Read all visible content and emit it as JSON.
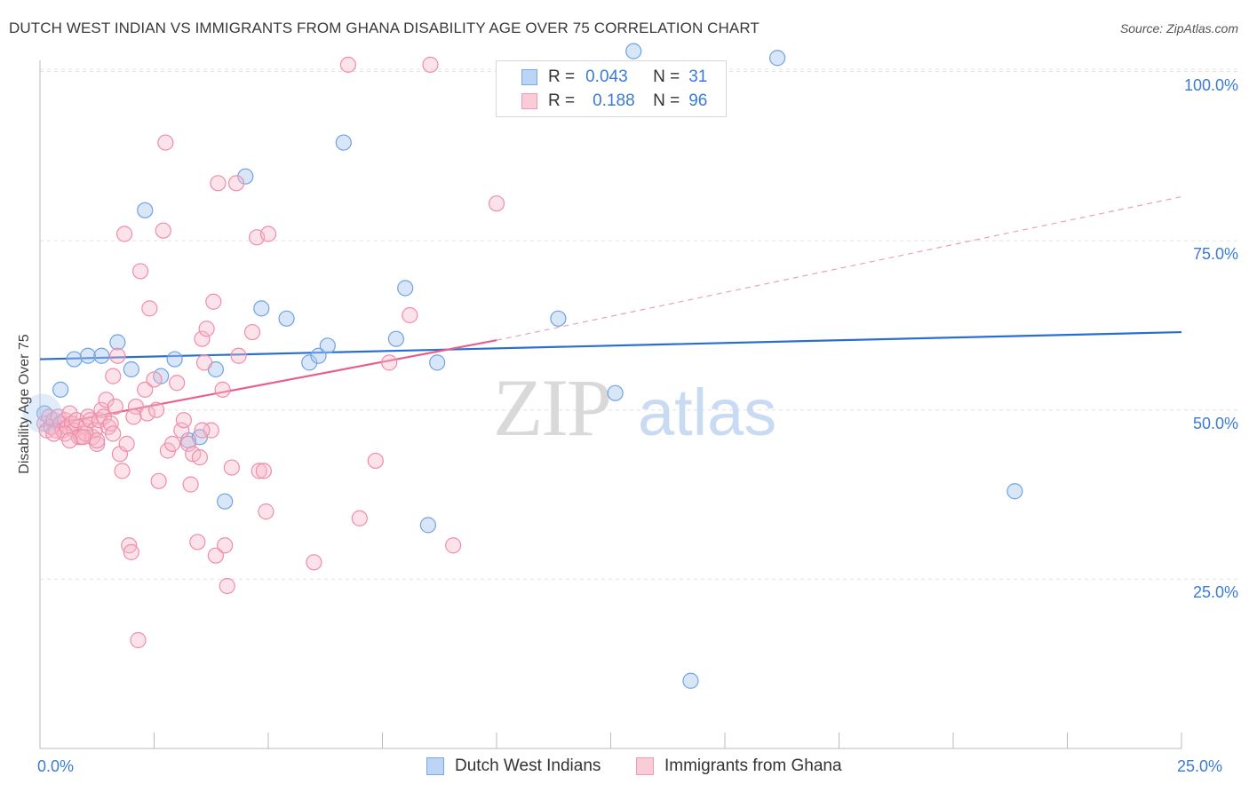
{
  "title": "DUTCH WEST INDIAN VS IMMIGRANTS FROM GHANA DISABILITY AGE OVER 75 CORRELATION CHART",
  "source": "Source: ZipAtlas.com",
  "watermark": {
    "zip": "ZIP",
    "atlas": "atlas"
  },
  "legend": {
    "r_label": "R =",
    "n_label": "N =",
    "blue": {
      "r": "0.043",
      "n": "31",
      "color": "#a8c8f0"
    },
    "pink": {
      "r": "0.188",
      "n": "96",
      "color": "#f6b8c8"
    }
  },
  "bottom_legend": {
    "blue": "Dutch West Indians",
    "pink": "Immigrants from Ghana"
  },
  "chart_data": {
    "type": "scatter",
    "xlabel": "",
    "ylabel": "Disability Age Over 75",
    "xlim": [
      0,
      25
    ],
    "ylim": [
      0,
      105
    ],
    "x_tick_labels": [
      "0.0%",
      "25.0%"
    ],
    "y_ticks": [
      25,
      50,
      75,
      100
    ],
    "y_tick_labels": [
      "25.0%",
      "50.0%",
      "75.0%",
      "100.0%"
    ],
    "grid": true,
    "series": [
      {
        "name": "Dutch West Indians",
        "color": "#6fa3e0",
        "trend": {
          "x": [
            0,
            25
          ],
          "y": [
            57.5,
            61.5
          ],
          "style": "solid",
          "color": "#2a6fd0"
        },
        "points": [
          [
            0.1,
            49.5
          ],
          [
            0.45,
            53
          ],
          [
            0.75,
            57.5
          ],
          [
            1.05,
            58
          ],
          [
            1.35,
            58
          ],
          [
            1.7,
            60
          ],
          [
            2.0,
            56
          ],
          [
            2.3,
            79.5
          ],
          [
            2.65,
            55
          ],
          [
            2.95,
            57.5
          ],
          [
            3.25,
            45.5
          ],
          [
            3.5,
            46
          ],
          [
            3.85,
            56
          ],
          [
            4.05,
            36.5
          ],
          [
            4.5,
            84.5
          ],
          [
            4.85,
            65
          ],
          [
            5.4,
            63.5
          ],
          [
            5.9,
            57
          ],
          [
            6.1,
            58
          ],
          [
            6.3,
            59.5
          ],
          [
            6.65,
            89.5
          ],
          [
            7.8,
            60.5
          ],
          [
            8.0,
            68
          ],
          [
            8.7,
            57
          ],
          [
            8.5,
            33
          ],
          [
            11.35,
            63.5
          ],
          [
            12.6,
            52.5
          ],
          [
            14.25,
            10
          ],
          [
            16.15,
            102
          ],
          [
            21.35,
            38
          ],
          [
            13.0,
            103
          ]
        ]
      },
      {
        "name": "Immigrants from Ghana",
        "color": "#f08cab",
        "trend": {
          "x": [
            0,
            10
          ],
          "y": [
            47.5,
            60.3
          ],
          "style": "solid",
          "color": "#e8608a",
          "extension": {
            "x": [
              10,
              25
            ],
            "y": [
              60.3,
              81.5
            ],
            "style": "dashed"
          }
        },
        "points": [
          [
            0.1,
            48
          ],
          [
            0.15,
            47
          ],
          [
            0.2,
            49
          ],
          [
            0.25,
            47.5
          ],
          [
            0.3,
            48.5
          ],
          [
            0.35,
            47
          ],
          [
            0.4,
            49
          ],
          [
            0.45,
            48
          ],
          [
            0.5,
            47
          ],
          [
            0.55,
            48.5
          ],
          [
            0.6,
            47.5
          ],
          [
            0.65,
            49.5
          ],
          [
            0.7,
            48
          ],
          [
            0.75,
            47
          ],
          [
            0.8,
            48.5
          ],
          [
            0.85,
            46
          ],
          [
            0.9,
            46
          ],
          [
            1.0,
            47.5
          ],
          [
            1.05,
            49
          ],
          [
            1.1,
            48.5
          ],
          [
            1.15,
            46
          ],
          [
            1.2,
            47
          ],
          [
            1.25,
            45
          ],
          [
            1.3,
            48.5
          ],
          [
            1.35,
            50
          ],
          [
            1.4,
            49
          ],
          [
            1.45,
            51.5
          ],
          [
            1.5,
            47.5
          ],
          [
            1.55,
            48
          ],
          [
            1.6,
            55
          ],
          [
            1.65,
            50.5
          ],
          [
            1.7,
            58
          ],
          [
            1.75,
            43.5
          ],
          [
            1.8,
            41
          ],
          [
            1.85,
            76
          ],
          [
            1.9,
            45
          ],
          [
            1.95,
            30
          ],
          [
            2.0,
            29
          ],
          [
            2.1,
            50.5
          ],
          [
            2.15,
            16
          ],
          [
            2.2,
            70.5
          ],
          [
            2.3,
            53
          ],
          [
            2.35,
            49.5
          ],
          [
            2.4,
            65
          ],
          [
            2.5,
            54.5
          ],
          [
            2.55,
            50
          ],
          [
            2.6,
            39.5
          ],
          [
            2.7,
            76.5
          ],
          [
            2.75,
            89.5
          ],
          [
            2.8,
            44
          ],
          [
            2.9,
            45
          ],
          [
            3.0,
            54
          ],
          [
            3.1,
            47
          ],
          [
            3.15,
            48.5
          ],
          [
            3.25,
            45
          ],
          [
            3.3,
            39
          ],
          [
            3.35,
            43.5
          ],
          [
            3.45,
            30.5
          ],
          [
            3.5,
            43
          ],
          [
            3.55,
            60.5
          ],
          [
            3.6,
            57
          ],
          [
            3.65,
            62
          ],
          [
            3.75,
            47
          ],
          [
            3.8,
            66
          ],
          [
            3.85,
            28.5
          ],
          [
            3.9,
            83.5
          ],
          [
            4.0,
            53
          ],
          [
            4.05,
            30
          ],
          [
            4.1,
            24
          ],
          [
            4.2,
            41.5
          ],
          [
            4.3,
            83.5
          ],
          [
            4.35,
            58
          ],
          [
            4.65,
            61.5
          ],
          [
            4.75,
            75.5
          ],
          [
            4.8,
            41
          ],
          [
            4.9,
            41
          ],
          [
            4.95,
            35
          ],
          [
            5.0,
            76
          ],
          [
            6.0,
            27.5
          ],
          [
            6.75,
            101
          ],
          [
            7.0,
            34
          ],
          [
            7.35,
            42.5
          ],
          [
            7.65,
            57
          ],
          [
            8.1,
            64
          ],
          [
            8.55,
            101
          ],
          [
            9.05,
            30
          ],
          [
            10.0,
            80.5
          ],
          [
            2.05,
            49
          ],
          [
            1.0,
            46.5
          ],
          [
            0.95,
            46
          ],
          [
            1.6,
            46.5
          ],
          [
            0.55,
            46.5
          ],
          [
            1.25,
            45.5
          ],
          [
            0.3,
            46.5
          ],
          [
            0.65,
            45.5
          ],
          [
            3.55,
            47
          ]
        ]
      }
    ]
  }
}
